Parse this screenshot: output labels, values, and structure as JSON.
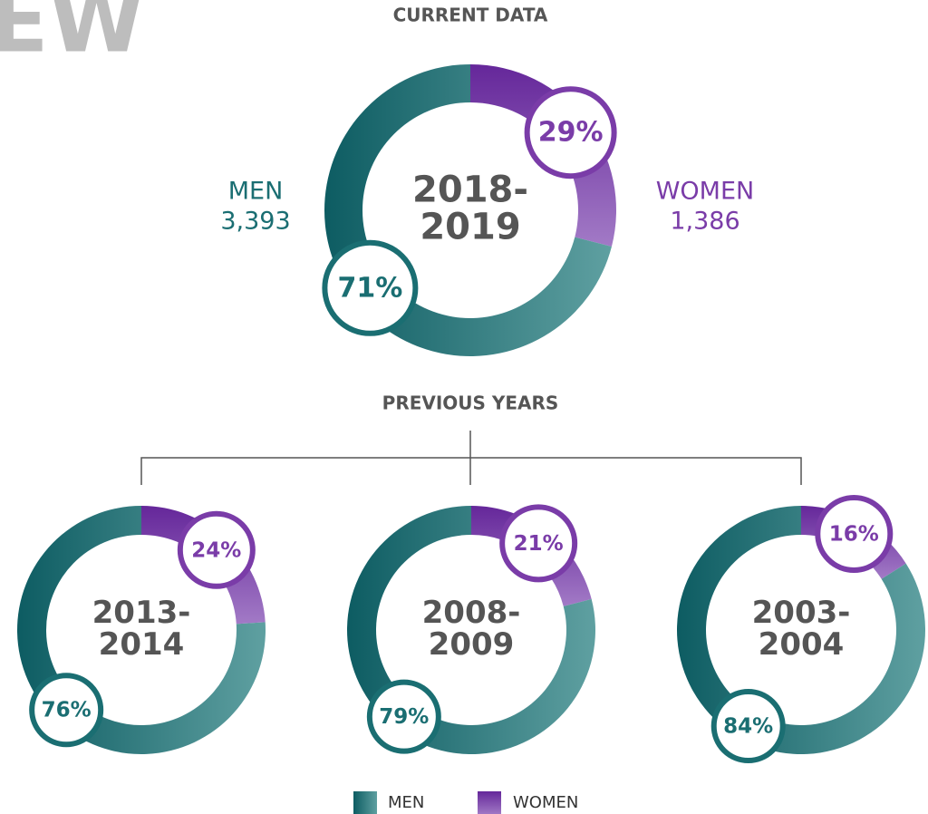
{
  "header_fragment": "EW",
  "sections": {
    "current": "CURRENT DATA",
    "previous": "PREVIOUS YEARS"
  },
  "chart_data": [
    {
      "type": "donut",
      "title_lines": [
        "2018-",
        "2019"
      ],
      "categories": [
        "MEN",
        "WOMEN"
      ],
      "colors": [
        "#1a6e72",
        "#7a3ca8"
      ],
      "values": [
        71,
        29
      ],
      "value_labels": [
        "71%",
        "29%"
      ],
      "counts": [
        3393,
        1386
      ],
      "count_labels": [
        "3,393",
        "1,386"
      ]
    },
    {
      "type": "donut",
      "title_lines": [
        "2013-",
        "2014"
      ],
      "values": [
        76,
        24
      ],
      "value_labels": [
        "76%",
        "24%"
      ]
    },
    {
      "type": "donut",
      "title_lines": [
        "2008-",
        "2009"
      ],
      "values": [
        79,
        21
      ],
      "value_labels": [
        "79%",
        "21%"
      ]
    },
    {
      "type": "donut",
      "title_lines": [
        "2003-",
        "2004"
      ],
      "values": [
        84,
        16
      ],
      "value_labels": [
        "84%",
        "16%"
      ]
    }
  ]
}
